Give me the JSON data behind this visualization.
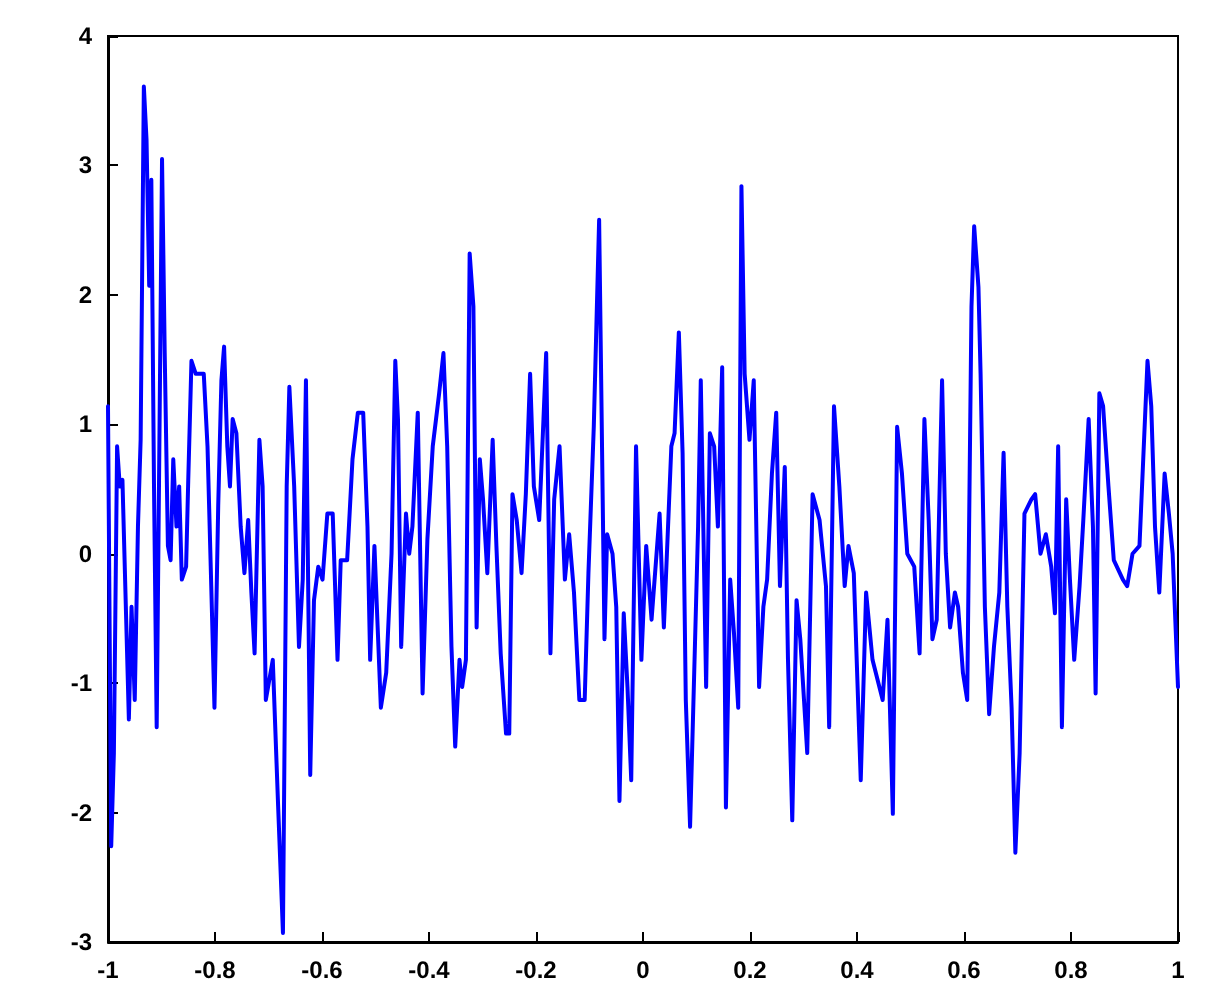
{
  "chart_data": {
    "type": "line",
    "color": "#0000ff",
    "line_style": "solid",
    "marker": "none",
    "xlim": [
      -1,
      1
    ],
    "xticks": [
      -1,
      -0.8,
      -0.6,
      -0.4,
      -0.2,
      0,
      0.2,
      0.4,
      0.6,
      0.8,
      1
    ],
    "ylim": [
      -3,
      4
    ],
    "yticks": [
      -3,
      -2,
      -1,
      0,
      1,
      2,
      3,
      4
    ],
    "x": [
      -1.0,
      -0.994,
      -0.989,
      -0.983,
      -0.978,
      -0.973,
      -0.966,
      -0.961,
      -0.956,
      -0.95,
      -0.944,
      -0.939,
      -0.933,
      -0.928,
      -0.923,
      -0.919,
      -0.914,
      -0.909,
      -0.904,
      -0.899,
      -0.894,
      -0.888,
      -0.883,
      -0.878,
      -0.872,
      -0.867,
      -0.862,
      -0.854,
      -0.85,
      -0.844,
      -0.836,
      -0.821,
      -0.814,
      -0.807,
      -0.801,
      -0.794,
      -0.788,
      -0.783,
      -0.777,
      -0.772,
      -0.767,
      -0.76,
      -0.752,
      -0.745,
      -0.738,
      -0.732,
      -0.726,
      -0.717,
      -0.711,
      -0.705,
      -0.692,
      -0.682,
      -0.673,
      -0.666,
      -0.661,
      -0.652,
      -0.643,
      -0.636,
      -0.63,
      -0.622,
      -0.615,
      -0.607,
      -0.599,
      -0.59,
      -0.58,
      -0.571,
      -0.565,
      -0.553,
      -0.543,
      -0.533,
      -0.523,
      -0.515,
      -0.51,
      -0.502,
      -0.49,
      -0.48,
      -0.47,
      -0.463,
      -0.458,
      -0.452,
      -0.443,
      -0.437,
      -0.431,
      -0.421,
      -0.412,
      -0.403,
      -0.393,
      -0.381,
      -0.373,
      -0.366,
      -0.358,
      -0.351,
      -0.343,
      -0.338,
      -0.331,
      -0.324,
      -0.317,
      -0.311,
      -0.305,
      -0.299,
      -0.291,
      -0.281,
      -0.274,
      -0.266,
      -0.256,
      -0.25,
      -0.244,
      -0.236,
      -0.227,
      -0.219,
      -0.211,
      -0.204,
      -0.194,
      -0.186,
      -0.181,
      -0.173,
      -0.166,
      -0.156,
      -0.146,
      -0.138,
      -0.129,
      -0.119,
      -0.109,
      -0.102,
      -0.092,
      -0.082,
      -0.072,
      -0.067,
      -0.057,
      -0.05,
      -0.044,
      -0.036,
      -0.029,
      -0.022,
      -0.013,
      -0.003,
      0.006,
      0.016,
      0.031,
      0.039,
      0.053,
      0.059,
      0.067,
      0.074,
      0.08,
      0.088,
      0.095,
      0.103,
      0.108,
      0.118,
      0.125,
      0.133,
      0.14,
      0.148,
      0.155,
      0.163,
      0.17,
      0.178,
      0.184,
      0.19,
      0.199,
      0.207,
      0.217,
      0.225,
      0.232,
      0.241,
      0.249,
      0.256,
      0.265,
      0.271,
      0.279,
      0.287,
      0.294,
      0.307,
      0.317,
      0.33,
      0.342,
      0.348,
      0.357,
      0.367,
      0.377,
      0.384,
      0.394,
      0.407,
      0.417,
      0.429,
      0.448,
      0.457,
      0.467,
      0.475,
      0.484,
      0.494,
      0.507,
      0.517,
      0.526,
      0.534,
      0.541,
      0.549,
      0.559,
      0.566,
      0.574,
      0.583,
      0.589,
      0.598,
      0.606,
      0.614,
      0.619,
      0.627,
      0.631,
      0.639,
      0.647,
      0.656,
      0.666,
      0.674,
      0.681,
      0.689,
      0.696,
      0.704,
      0.713,
      0.726,
      0.733,
      0.743,
      0.753,
      0.763,
      0.77,
      0.776,
      0.783,
      0.791,
      0.798,
      0.806,
      0.816,
      0.823,
      0.833,
      0.841,
      0.846,
      0.853,
      0.86,
      0.87,
      0.88,
      0.897,
      0.905,
      0.915,
      0.928,
      0.935,
      0.943,
      0.95,
      0.957,
      0.965,
      0.975,
      0.983,
      0.99,
      1.0
    ],
    "values": [
      1.14,
      -2.26,
      -1.54,
      0.83,
      0.52,
      0.57,
      -0.51,
      -1.28,
      -0.41,
      -1.13,
      0.21,
      0.88,
      3.61,
      3.2,
      2.07,
      2.89,
      0.52,
      -1.34,
      0.83,
      3.05,
      1.55,
      0.06,
      -0.05,
      0.73,
      0.21,
      0.52,
      -0.2,
      -0.1,
      0.57,
      1.49,
      1.39,
      1.39,
      0.83,
      -0.25,
      -1.19,
      0.37,
      1.34,
      1.6,
      0.83,
      0.52,
      1.04,
      0.93,
      0.21,
      -0.15,
      0.26,
      -0.3,
      -0.77,
      0.88,
      0.52,
      -1.13,
      -0.82,
      -1.95,
      -2.93,
      0.52,
      1.29,
      0.52,
      -0.72,
      -0.2,
      1.34,
      -1.71,
      -0.36,
      -0.1,
      -0.2,
      0.31,
      0.31,
      -0.82,
      -0.05,
      -0.05,
      0.73,
      1.09,
      1.09,
      0.21,
      -0.82,
      0.06,
      -1.19,
      -0.92,
      0.0,
      1.49,
      1.04,
      -0.72,
      0.31,
      0,
      0.21,
      1.09,
      -1.08,
      0.11,
      0.83,
      1.24,
      1.55,
      0.83,
      -0.72,
      -1.49,
      -0.82,
      -1.03,
      -0.82,
      2.32,
      1.91,
      -0.57,
      0.73,
      0.42,
      -0.15,
      0.88,
      0.06,
      -0.77,
      -1.39,
      -1.39,
      0.46,
      0.26,
      -0.15,
      0.46,
      1.39,
      0.52,
      0.26,
      1.04,
      1.55,
      -0.77,
      0.42,
      0.83,
      -0.2,
      0.15,
      -0.3,
      -1.13,
      -1.13,
      -0.15,
      0.98,
      2.58,
      -0.66,
      0.15,
      0,
      -0.41,
      -1.91,
      -0.46,
      -1.03,
      -1.75,
      0.83,
      -0.82,
      0.06,
      -0.51,
      0.31,
      -0.57,
      0.83,
      0.93,
      1.71,
      0.78,
      -1.13,
      -2.11,
      -1.03,
      0.21,
      1.34,
      -1.03,
      0.93,
      0.83,
      0.21,
      1.44,
      -1.96,
      -0.2,
      -0.61,
      -1.19,
      2.84,
      1.39,
      0.88,
      1.34,
      -1.03,
      -0.41,
      -0.2,
      0.62,
      1.09,
      -0.25,
      0.67,
      -0.82,
      -2.06,
      -0.36,
      -0.66,
      -1.54,
      0.46,
      0.26,
      -0.25,
      -1.34,
      1.14,
      0.52,
      -0.25,
      0.06,
      -0.15,
      -1.75,
      -0.3,
      -0.82,
      -1.13,
      -0.51,
      -2.01,
      0.98,
      0.62,
      0,
      -0.1,
      -0.77,
      1.04,
      0.26,
      -0.66,
      -0.51,
      1.34,
      0,
      -0.57,
      -0.3,
      -0.41,
      -0.92,
      -1.13,
      1.91,
      2.53,
      2.06,
      1.39,
      -0.41,
      -1.24,
      -0.72,
      -0.3,
      0.78,
      -0.41,
      -1.19,
      -2.31,
      -1.54,
      0.31,
      0.42,
      0.46,
      0,
      0.15,
      -0.1,
      -0.46,
      0.83,
      -1.34,
      0.42,
      -0.2,
      -0.82,
      -0.25,
      0.26,
      1.04,
      0.21,
      -1.08,
      1.24,
      1.14,
      0.52,
      -0.05,
      -0.2,
      -0.25,
      0,
      0.06,
      0.73,
      1.49,
      1.14,
      0.21,
      -0.3,
      0.62,
      0.31,
      0,
      -1.03
    ]
  }
}
